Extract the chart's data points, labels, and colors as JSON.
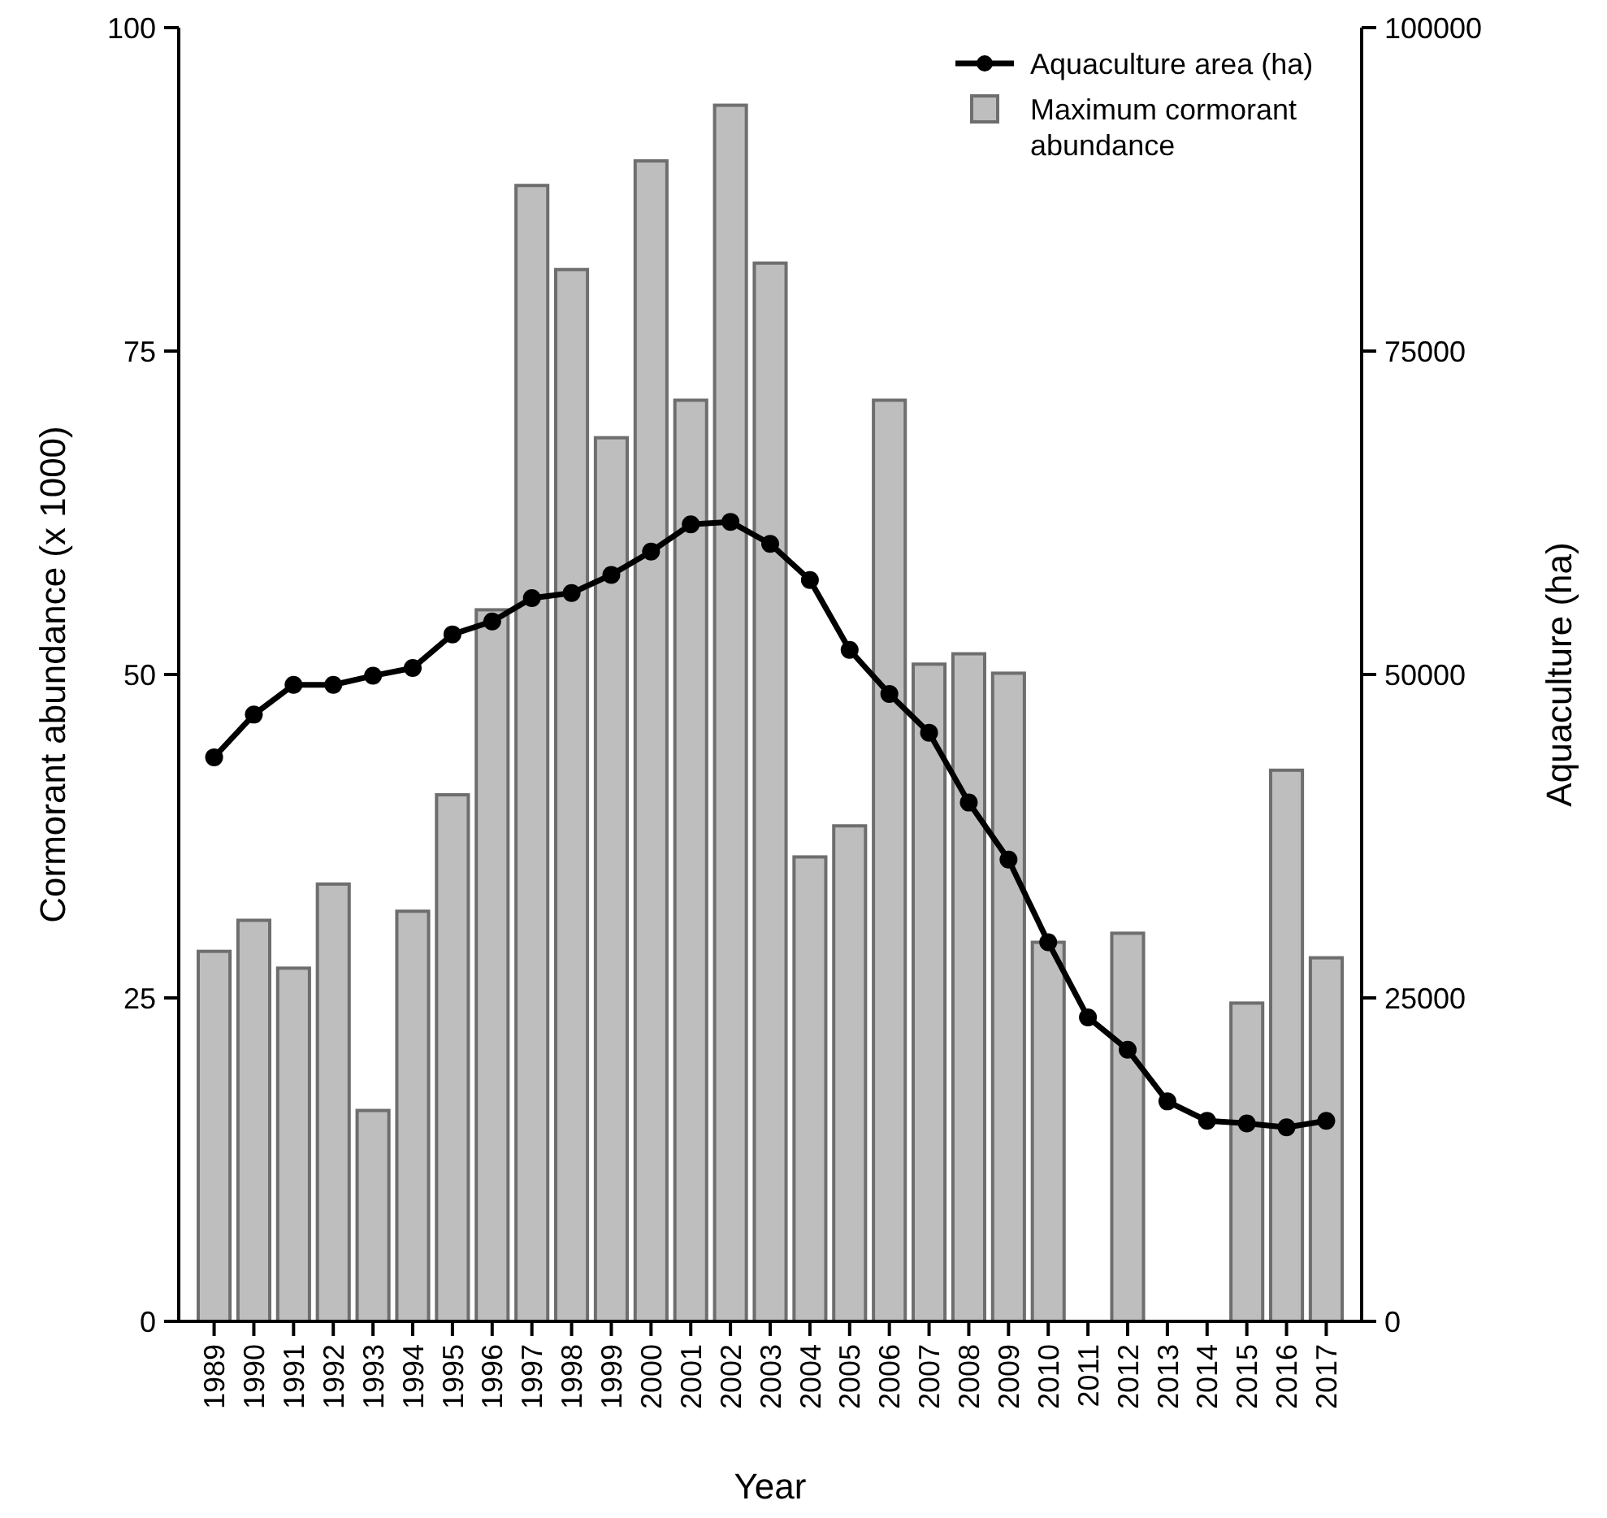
{
  "chart_data": {
    "type": "bar",
    "xlabel": "Year",
    "ylabel": "Cormorant abundance (x 1000)",
    "y2label": "Aquaculture (ha)",
    "categories": [
      "1989",
      "1990",
      "1991",
      "1992",
      "1993",
      "1994",
      "1995",
      "1996",
      "1997",
      "1998",
      "1999",
      "2000",
      "2001",
      "2002",
      "2003",
      "2004",
      "2005",
      "2006",
      "2007",
      "2008",
      "2009",
      "2010",
      "2011",
      "2012",
      "2013",
      "2014",
      "2015",
      "2016",
      "2017"
    ],
    "series": [
      {
        "name": "Aquaculture area (ha)",
        "type": "line",
        "axis": "y2",
        "color": "#000000",
        "marker": "circle",
        "values": [
          43600,
          46900,
          49200,
          49200,
          49900,
          50500,
          53100,
          54100,
          55900,
          56300,
          57700,
          59500,
          61600,
          61800,
          60100,
          57300,
          51900,
          48500,
          45500,
          40100,
          35700,
          29300,
          23500,
          21000,
          17000,
          15500,
          15300,
          15000,
          15500
        ]
      },
      {
        "name": "Maximum cormorant abundance",
        "color": "#bebebe",
        "values": [
          28.6,
          31.0,
          27.3,
          33.8,
          16.3,
          31.7,
          40.7,
          55.0,
          87.8,
          81.3,
          68.3,
          89.7,
          71.2,
          94.0,
          81.8,
          35.9,
          38.3,
          71.2,
          50.8,
          51.6,
          50.1,
          29.3,
          null,
          30.0,
          null,
          null,
          24.6,
          42.6,
          28.1
        ]
      }
    ],
    "ylim": [
      0,
      100
    ],
    "yticks": [
      0,
      25,
      50,
      75,
      100
    ],
    "y2lim": [
      0,
      100000
    ],
    "y2ticks": [
      0,
      25000,
      50000,
      75000,
      100000
    ],
    "legend": "top right",
    "grid": false,
    "line_style": "solid"
  }
}
